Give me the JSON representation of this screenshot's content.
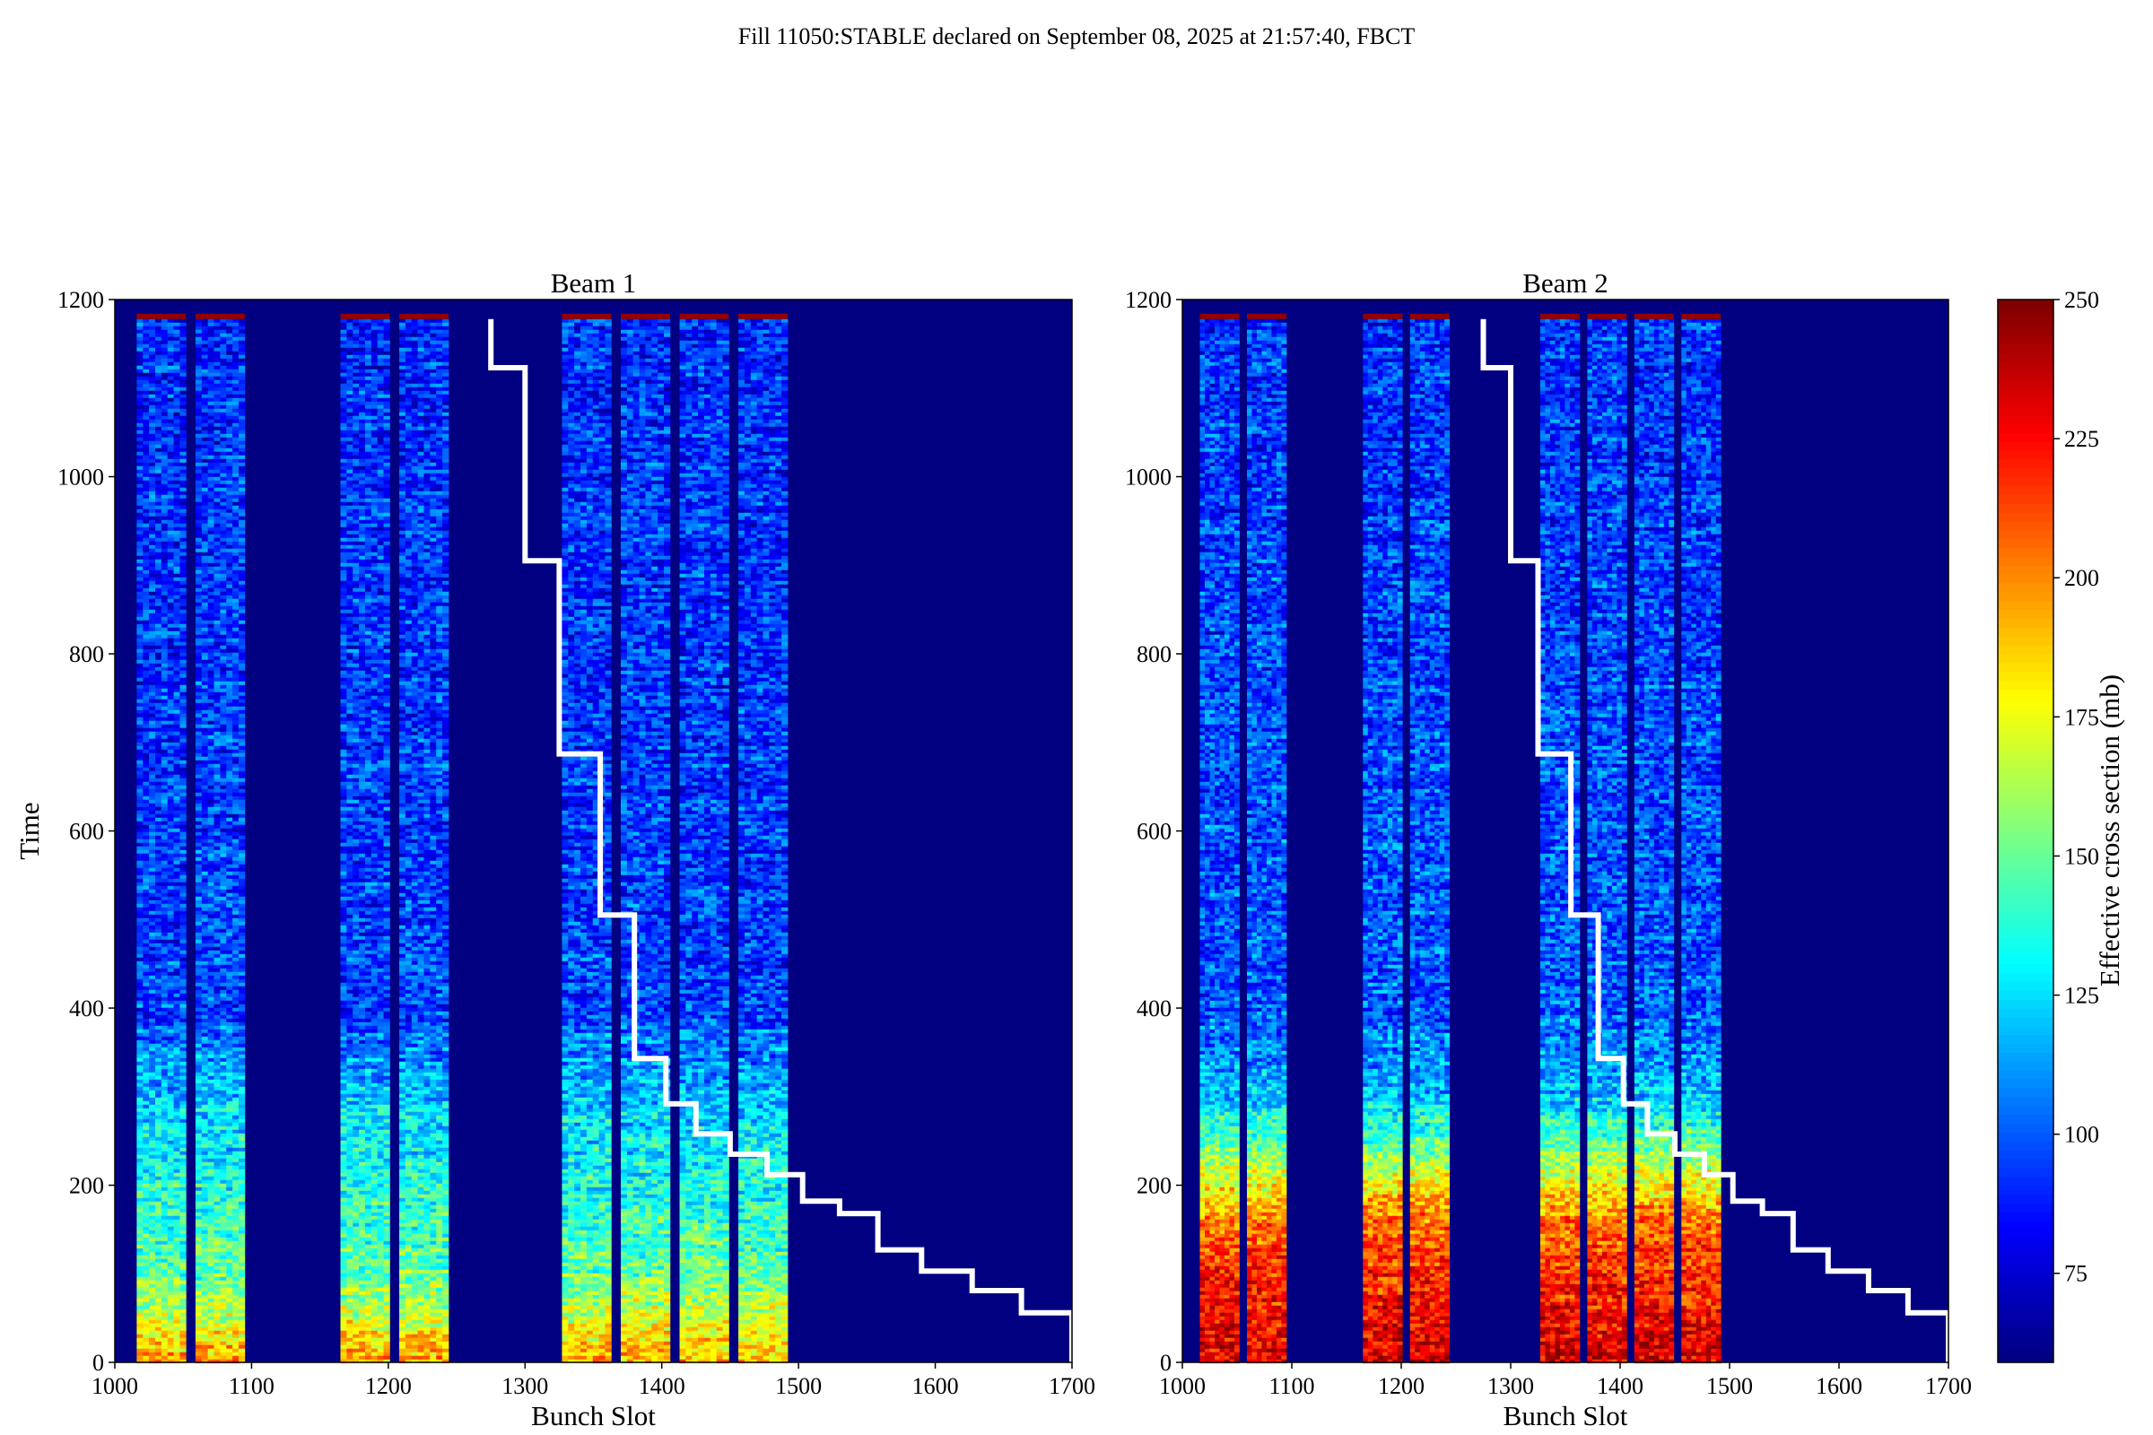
{
  "figure": {
    "suptitle": "Fill 11050:STABLE declared on September 08, 2025 at 21:57:40, FBCT"
  },
  "colorbar": {
    "label": "Effective cross section (mb)",
    "ticks": [
      75,
      100,
      125,
      150,
      175,
      200,
      225,
      250
    ],
    "range": [
      59,
      250
    ]
  },
  "chart_data": [
    {
      "type": "heatmap",
      "title": "Beam 1",
      "xlabel": "Bunch Slot",
      "ylabel": "Time",
      "xlim": [
        1000,
        1700
      ],
      "ylim": [
        0,
        1200
      ],
      "xticks": [
        1000,
        1100,
        1200,
        1300,
        1400,
        1500,
        1600,
        1700
      ],
      "yticks": [
        0,
        200,
        400,
        600,
        800,
        1000,
        1200
      ],
      "grid": false,
      "colormap": "jet",
      "background_value": 59,
      "bunch_trains": [
        [
          1016,
          1052
        ],
        [
          1059,
          1095
        ],
        [
          1165,
          1201
        ],
        [
          1208,
          1244
        ],
        [
          1327,
          1363
        ],
        [
          1370,
          1406
        ],
        [
          1413,
          1449
        ],
        [
          1456,
          1492
        ]
      ],
      "time_end": 1178,
      "value_profile": {
        "description_levels": [
          {
            "t": 0,
            "value": 195
          },
          {
            "t": 100,
            "value": 150
          },
          {
            "t": 300,
            "value": 120
          },
          {
            "t": 400,
            "value": 95
          },
          {
            "t": 1178,
            "value": 90
          }
        ]
      },
      "step_line": {
        "x": [
          1275,
          1275,
          1300,
          1300,
          1325,
          1325,
          1355,
          1355,
          1380,
          1380,
          1403,
          1403,
          1425,
          1425,
          1450,
          1450,
          1477,
          1477,
          1503,
          1503,
          1530,
          1530,
          1558,
          1558,
          1590,
          1590,
          1627,
          1627,
          1663,
          1663,
          1700,
          1700
        ],
        "y": [
          1178,
          1123,
          1123,
          905,
          905,
          687,
          687,
          505,
          505,
          343,
          343,
          292,
          292,
          258,
          258,
          235,
          235,
          212,
          212,
          182,
          182,
          168,
          168,
          127,
          127,
          103,
          103,
          81,
          81,
          56,
          56,
          0
        ]
      }
    },
    {
      "type": "heatmap",
      "title": "Beam 2",
      "xlabel": "Bunch Slot",
      "ylabel": "",
      "xlim": [
        1000,
        1700
      ],
      "ylim": [
        0,
        1200
      ],
      "xticks": [
        1000,
        1100,
        1200,
        1300,
        1400,
        1500,
        1600,
        1700
      ],
      "yticks": [
        0,
        200,
        400,
        600,
        800,
        1000,
        1200
      ],
      "grid": false,
      "colormap": "jet",
      "background_value": 59,
      "bunch_trains": [
        [
          1016,
          1052
        ],
        [
          1059,
          1095
        ],
        [
          1165,
          1201
        ],
        [
          1208,
          1244
        ],
        [
          1327,
          1363
        ],
        [
          1370,
          1406
        ],
        [
          1413,
          1449
        ],
        [
          1456,
          1492
        ]
      ],
      "time_end": 1178,
      "value_profile": {
        "description_levels": [
          {
            "t": 0,
            "value": 235
          },
          {
            "t": 150,
            "value": 210
          },
          {
            "t": 300,
            "value": 120
          },
          {
            "t": 400,
            "value": 100
          },
          {
            "t": 1178,
            "value": 92
          }
        ]
      },
      "step_line": {
        "x": [
          1275,
          1275,
          1300,
          1300,
          1325,
          1325,
          1355,
          1355,
          1380,
          1380,
          1403,
          1403,
          1425,
          1425,
          1450,
          1450,
          1477,
          1477,
          1503,
          1503,
          1530,
          1530,
          1558,
          1558,
          1590,
          1590,
          1627,
          1627,
          1663,
          1663,
          1700,
          1700
        ],
        "y": [
          1178,
          1123,
          1123,
          905,
          905,
          687,
          687,
          505,
          505,
          343,
          343,
          292,
          292,
          258,
          258,
          235,
          235,
          212,
          212,
          182,
          182,
          168,
          168,
          127,
          127,
          103,
          103,
          81,
          81,
          56,
          56,
          0
        ]
      }
    }
  ]
}
